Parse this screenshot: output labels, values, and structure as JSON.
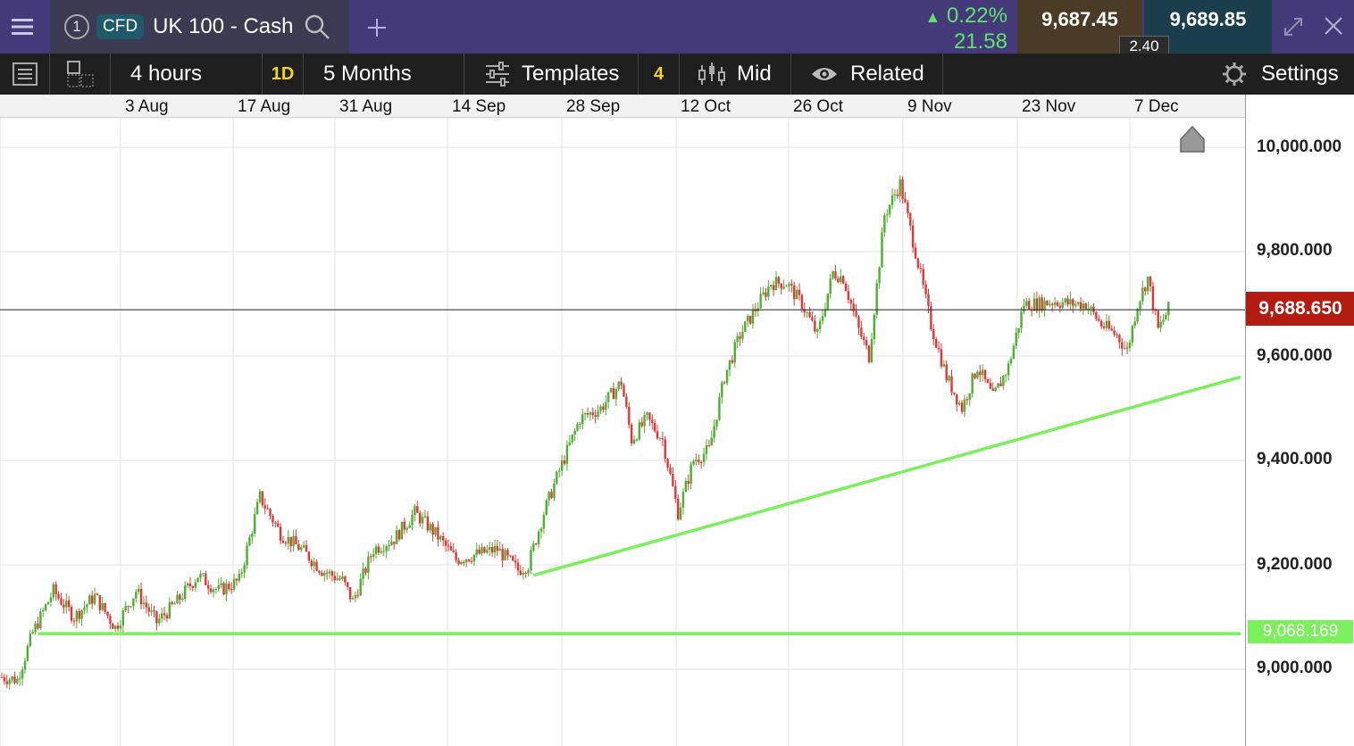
{
  "header": {
    "window_number": "1",
    "badge": "CFD",
    "instrument": "UK 100 - Cash",
    "change_percent": "0.22%",
    "change_points": "21.58",
    "bid": "9,687.45",
    "ask": "9,689.85",
    "spread": "2.40"
  },
  "toolbar": {
    "interval": "4 hours",
    "interval_short": "1D",
    "range": "5 Months",
    "templates": "Templates",
    "indicator_count": "4",
    "price_type": "Mid",
    "related": "Related",
    "settings": "Settings"
  },
  "dates": [
    "3 Aug",
    "17 Aug",
    "31 Aug",
    "14 Sep",
    "28 Sep",
    "12 Oct",
    "26 Oct",
    "9 Nov",
    "23 Nov",
    "7 Dec"
  ],
  "chart_data": {
    "type": "candlestick",
    "x_labels": [
      "3 Aug",
      "17 Aug",
      "31 Aug",
      "14 Sep",
      "28 Sep",
      "12 Oct",
      "26 Oct",
      "9 Nov",
      "23 Nov",
      "7 Dec"
    ],
    "y_ticks": [
      "10,000.000",
      "9,800.000",
      "9,600.000",
      "9,400.000",
      "9,200.000",
      "9,000.000"
    ],
    "y_tick_values": [
      10000,
      9800,
      9600,
      9400,
      9200,
      9000
    ],
    "ylim": [
      8900,
      10040
    ],
    "current_price": 9688.65,
    "current_price_label": "9,688.650",
    "horizontal_level": 9068.169,
    "horizontal_level_label": "9,068.169",
    "price_path": [
      [
        0,
        8985
      ],
      [
        3,
        8980
      ],
      [
        6,
        9070
      ],
      [
        10,
        9150
      ],
      [
        14,
        9100
      ],
      [
        18,
        9140
      ],
      [
        22,
        9080
      ],
      [
        26,
        9150
      ],
      [
        30,
        9090
      ],
      [
        34,
        9130
      ],
      [
        38,
        9180
      ],
      [
        42,
        9150
      ],
      [
        46,
        9170
      ],
      [
        50,
        9330
      ],
      [
        54,
        9260
      ],
      [
        58,
        9230
      ],
      [
        62,
        9190
      ],
      [
        66,
        9170
      ],
      [
        68,
        9130
      ],
      [
        72,
        9230
      ],
      [
        76,
        9250
      ],
      [
        80,
        9300
      ],
      [
        84,
        9260
      ],
      [
        88,
        9210
      ],
      [
        92,
        9220
      ],
      [
        96,
        9230
      ],
      [
        100,
        9190
      ],
      [
        102,
        9200
      ],
      [
        105,
        9300
      ],
      [
        108,
        9380
      ],
      [
        112,
        9480
      ],
      [
        116,
        9500
      ],
      [
        120,
        9550
      ],
      [
        122,
        9440
      ],
      [
        125,
        9480
      ],
      [
        128,
        9440
      ],
      [
        131,
        9300
      ],
      [
        134,
        9400
      ],
      [
        137,
        9420
      ],
      [
        140,
        9560
      ],
      [
        143,
        9640
      ],
      [
        146,
        9690
      ],
      [
        149,
        9740
      ],
      [
        152,
        9740
      ],
      [
        155,
        9700
      ],
      [
        158,
        9640
      ],
      [
        161,
        9760
      ],
      [
        163,
        9750
      ],
      [
        166,
        9650
      ],
      [
        168,
        9600
      ],
      [
        171,
        9870
      ],
      [
        174,
        9930
      ],
      [
        177,
        9800
      ],
      [
        180,
        9660
      ],
      [
        183,
        9560
      ],
      [
        186,
        9500
      ],
      [
        189,
        9580
      ],
      [
        192,
        9520
      ],
      [
        195,
        9580
      ],
      [
        198,
        9700
      ],
      [
        201,
        9700
      ],
      [
        204,
        9705
      ],
      [
        207,
        9700
      ],
      [
        210,
        9700
      ],
      [
        213,
        9660
      ],
      [
        216,
        9640
      ],
      [
        218,
        9610
      ],
      [
        220,
        9700
      ],
      [
        222,
        9750
      ],
      [
        224,
        9650
      ],
      [
        226,
        9690
      ]
    ],
    "trendlines": [
      {
        "from": [
          103,
          9180
        ],
        "to": [
          240,
          9560
        ],
        "color": "#7af05c"
      },
      {
        "from": [
          7,
          9068.169
        ],
        "to": [
          240,
          9068.169
        ],
        "color": "#7af05c"
      }
    ],
    "colors": {
      "up": "#4caf2e",
      "down": "#e23636",
      "trend": "#7af05c",
      "current": "#222222"
    },
    "grid": true
  }
}
